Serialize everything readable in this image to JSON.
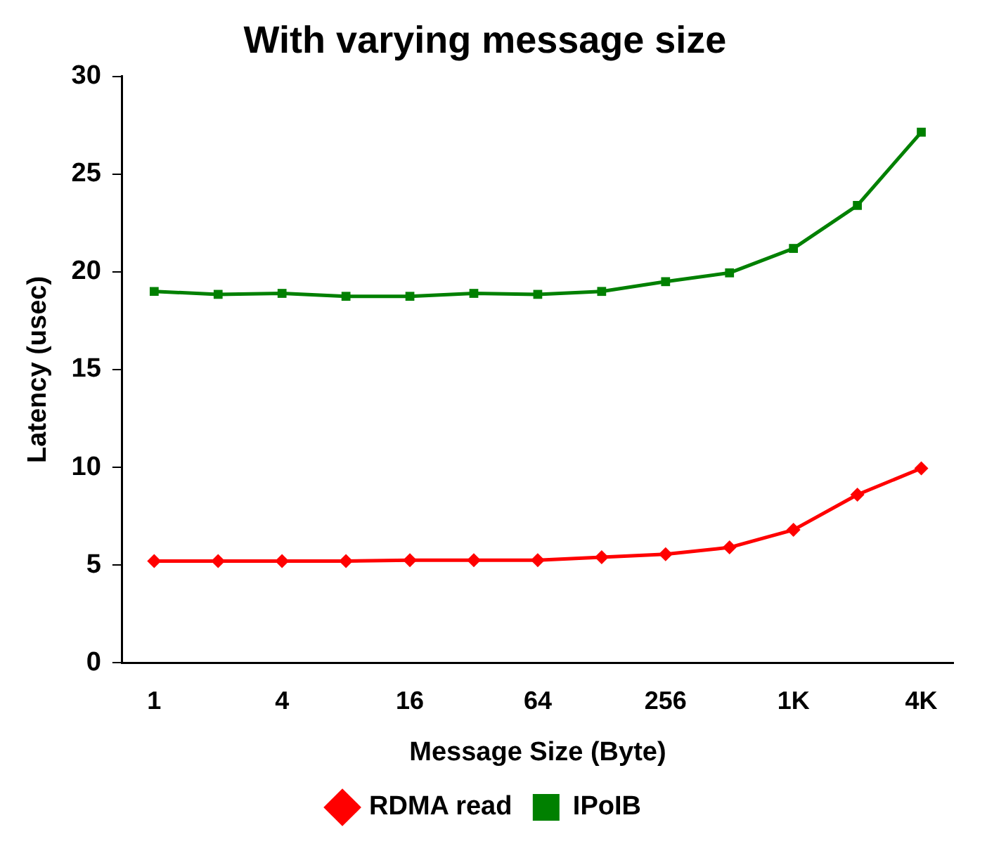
{
  "chart_data": {
    "type": "line",
    "title": "With varying message size",
    "xlabel": "Message Size (Byte)",
    "ylabel": "Latency (usec)",
    "categories": [
      "1",
      null,
      "4",
      null,
      "16",
      null,
      "64",
      null,
      "256",
      null,
      "1K",
      null,
      "4K"
    ],
    "series": [
      {
        "name": "RDMA read",
        "color": "#ff0000",
        "marker": "diamond",
        "values": [
          5.2,
          5.2,
          5.2,
          5.2,
          5.25,
          5.25,
          5.25,
          5.4,
          5.55,
          5.9,
          6.8,
          8.6,
          9.95
        ]
      },
      {
        "name": "IPoIB",
        "color": "#008000",
        "marker": "square",
        "values": [
          19.0,
          18.85,
          18.9,
          18.75,
          18.75,
          18.9,
          18.85,
          19.0,
          19.5,
          19.95,
          21.2,
          23.4,
          27.15
        ]
      }
    ],
    "ylim": [
      0,
      30
    ],
    "yticks": [
      0,
      5,
      10,
      15,
      20,
      25,
      30
    ],
    "grid": false,
    "legend": "bottom",
    "line_style": "solid"
  }
}
